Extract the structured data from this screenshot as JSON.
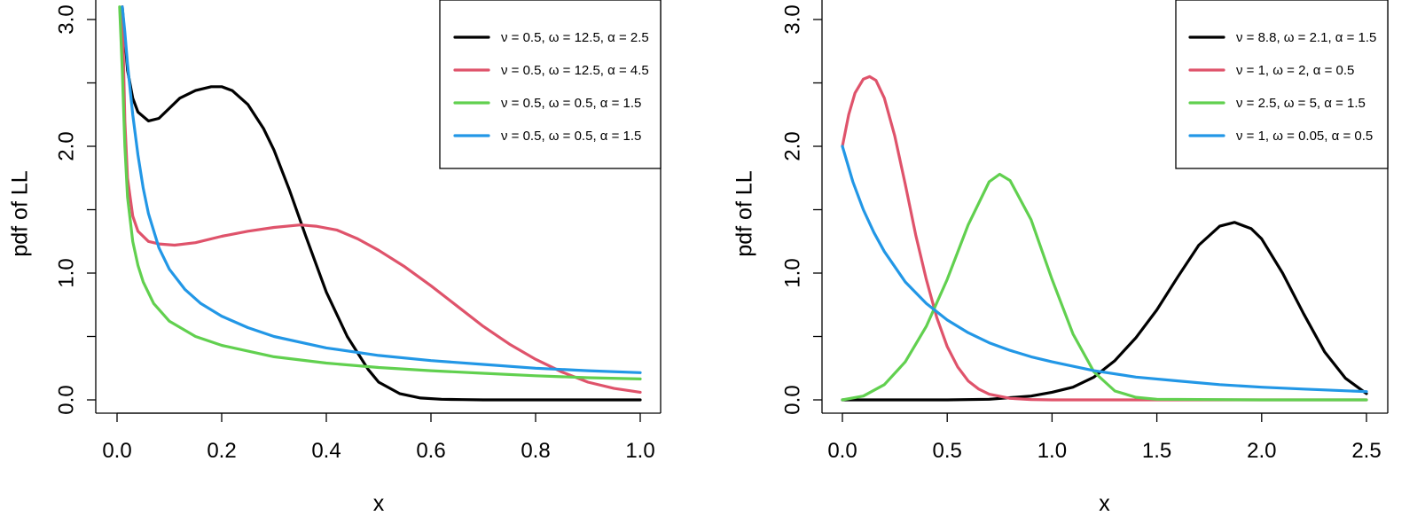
{
  "chart_data": [
    {
      "type": "line",
      "title": "",
      "xlabel": "x",
      "ylabel": "pdf of LL",
      "xlim": [
        0,
        1
      ],
      "ylim": [
        0,
        3
      ],
      "xticks": [
        "0.0",
        "0.2",
        "0.4",
        "0.6",
        "0.8",
        "1.0"
      ],
      "xtick_values": [
        0,
        0.2,
        0.4,
        0.6,
        0.8,
        1.0
      ],
      "yticks": [
        "0.0",
        "1.0",
        "2.0",
        "3.0"
      ],
      "ytick_values": [
        0,
        0.5,
        1,
        1.5,
        2,
        2.5,
        3
      ],
      "ytick_labeled": [
        true,
        false,
        true,
        false,
        true,
        false,
        true
      ],
      "legend_position": "top-right",
      "series": [
        {
          "name": "ν = 0.5, ω = 12.5, α = 2.5",
          "color": "#000000",
          "x": [
            0.01,
            0.02,
            0.03,
            0.04,
            0.06,
            0.08,
            0.1,
            0.12,
            0.15,
            0.18,
            0.2,
            0.22,
            0.25,
            0.28,
            0.3,
            0.33,
            0.36,
            0.4,
            0.44,
            0.48,
            0.5,
            0.54,
            0.58,
            0.62,
            0.66,
            0.7,
            0.8,
            0.9,
            1.0
          ],
          "y": [
            3.1,
            2.6,
            2.38,
            2.27,
            2.2,
            2.22,
            2.3,
            2.38,
            2.44,
            2.47,
            2.47,
            2.44,
            2.33,
            2.14,
            1.97,
            1.65,
            1.3,
            0.85,
            0.5,
            0.24,
            0.14,
            0.05,
            0.015,
            0.005,
            0.002,
            0.0,
            0.0,
            0.0,
            0.0
          ]
        },
        {
          "name": "ν = 0.5, ω = 12.5, α = 4.5",
          "color": "#DF536B",
          "x": [
            0.01,
            0.015,
            0.02,
            0.03,
            0.04,
            0.06,
            0.08,
            0.11,
            0.15,
            0.2,
            0.25,
            0.3,
            0.35,
            0.38,
            0.42,
            0.46,
            0.5,
            0.55,
            0.6,
            0.65,
            0.7,
            0.75,
            0.8,
            0.85,
            0.9,
            0.95,
            1.0
          ],
          "y": [
            3.1,
            2.2,
            1.75,
            1.45,
            1.33,
            1.25,
            1.23,
            1.22,
            1.24,
            1.29,
            1.33,
            1.36,
            1.38,
            1.37,
            1.34,
            1.27,
            1.18,
            1.05,
            0.9,
            0.74,
            0.58,
            0.44,
            0.32,
            0.22,
            0.14,
            0.09,
            0.06
          ]
        },
        {
          "name": "ν = 0.5, ω = 0.5, α = 1.5",
          "color": "#61D04F",
          "x": [
            0.005,
            0.01,
            0.015,
            0.02,
            0.03,
            0.04,
            0.05,
            0.07,
            0.1,
            0.15,
            0.2,
            0.3,
            0.4,
            0.5,
            0.6,
            0.7,
            0.8,
            0.9,
            1.0
          ],
          "y": [
            3.1,
            2.6,
            2.0,
            1.6,
            1.25,
            1.06,
            0.93,
            0.76,
            0.62,
            0.5,
            0.43,
            0.34,
            0.29,
            0.255,
            0.23,
            0.21,
            0.19,
            0.175,
            0.165
          ]
        },
        {
          "name": "ν = 0.5, ω = 0.5, α = 1.5",
          "color": "#2297E6",
          "x": [
            0.01,
            0.015,
            0.02,
            0.03,
            0.04,
            0.05,
            0.06,
            0.08,
            0.1,
            0.13,
            0.16,
            0.2,
            0.25,
            0.3,
            0.4,
            0.5,
            0.6,
            0.7,
            0.8,
            0.9,
            1.0
          ],
          "y": [
            3.1,
            2.9,
            2.65,
            2.25,
            1.93,
            1.67,
            1.47,
            1.2,
            1.03,
            0.87,
            0.76,
            0.66,
            0.57,
            0.5,
            0.41,
            0.35,
            0.31,
            0.28,
            0.25,
            0.23,
            0.215
          ]
        }
      ]
    },
    {
      "type": "line",
      "title": "",
      "xlabel": "x",
      "ylabel": "pdf of LL",
      "xlim": [
        0,
        2.5
      ],
      "ylim": [
        0,
        3
      ],
      "xticks": [
        "0.0",
        "0.5",
        "1.0",
        "1.5",
        "2.0",
        "2.5"
      ],
      "xtick_values": [
        0,
        0.5,
        1.0,
        1.5,
        2.0,
        2.5
      ],
      "yticks": [
        "0.0",
        "1.0",
        "2.0",
        "3.0"
      ],
      "ytick_values": [
        0,
        0.5,
        1,
        1.5,
        2,
        2.5,
        3
      ],
      "ytick_labeled": [
        true,
        false,
        true,
        false,
        true,
        false,
        true
      ],
      "legend_position": "top-right",
      "series": [
        {
          "name": "ν = 8.8, ω = 2.1, α = 1.5",
          "color": "#000000",
          "x": [
            0.0,
            0.5,
            0.7,
            0.9,
            1.0,
            1.1,
            1.2,
            1.3,
            1.4,
            1.5,
            1.6,
            1.7,
            1.8,
            1.87,
            1.95,
            2.0,
            2.1,
            2.2,
            2.3,
            2.4,
            2.5
          ],
          "y": [
            0.0,
            0.0,
            0.005,
            0.03,
            0.06,
            0.1,
            0.18,
            0.31,
            0.49,
            0.71,
            0.97,
            1.22,
            1.37,
            1.4,
            1.35,
            1.27,
            1.0,
            0.68,
            0.38,
            0.17,
            0.05
          ]
        },
        {
          "name": "ν = 1, ω = 2, α = 0.5",
          "color": "#DF536B",
          "x": [
            0.0,
            0.03,
            0.06,
            0.1,
            0.13,
            0.16,
            0.2,
            0.25,
            0.3,
            0.35,
            0.4,
            0.45,
            0.5,
            0.55,
            0.6,
            0.65,
            0.7,
            0.8,
            0.9,
            1.0,
            1.5,
            2.5
          ],
          "y": [
            2.0,
            2.25,
            2.42,
            2.53,
            2.55,
            2.52,
            2.38,
            2.08,
            1.7,
            1.3,
            0.95,
            0.65,
            0.42,
            0.26,
            0.15,
            0.085,
            0.045,
            0.012,
            0.003,
            0.0,
            0.0,
            0.0
          ]
        },
        {
          "name": "ν = 2.5, ω = 5, α = 1.5",
          "color": "#61D04F",
          "x": [
            0.0,
            0.1,
            0.2,
            0.3,
            0.4,
            0.5,
            0.6,
            0.7,
            0.75,
            0.8,
            0.9,
            1.0,
            1.1,
            1.2,
            1.3,
            1.4,
            1.5,
            2.0,
            2.5
          ],
          "y": [
            0.0,
            0.03,
            0.12,
            0.3,
            0.58,
            0.95,
            1.38,
            1.72,
            1.78,
            1.73,
            1.42,
            0.95,
            0.52,
            0.22,
            0.07,
            0.02,
            0.005,
            0.0,
            0.0
          ]
        },
        {
          "name": "ν = 1, ω = 0.05, α = 0.5",
          "color": "#2297E6",
          "x": [
            0.0,
            0.05,
            0.1,
            0.15,
            0.2,
            0.3,
            0.4,
            0.5,
            0.6,
            0.7,
            0.8,
            0.9,
            1.0,
            1.2,
            1.4,
            1.6,
            1.8,
            2.0,
            2.2,
            2.5
          ],
          "y": [
            2.0,
            1.72,
            1.5,
            1.32,
            1.17,
            0.93,
            0.76,
            0.63,
            0.53,
            0.45,
            0.39,
            0.34,
            0.3,
            0.23,
            0.18,
            0.15,
            0.12,
            0.1,
            0.085,
            0.065
          ]
        }
      ]
    }
  ]
}
